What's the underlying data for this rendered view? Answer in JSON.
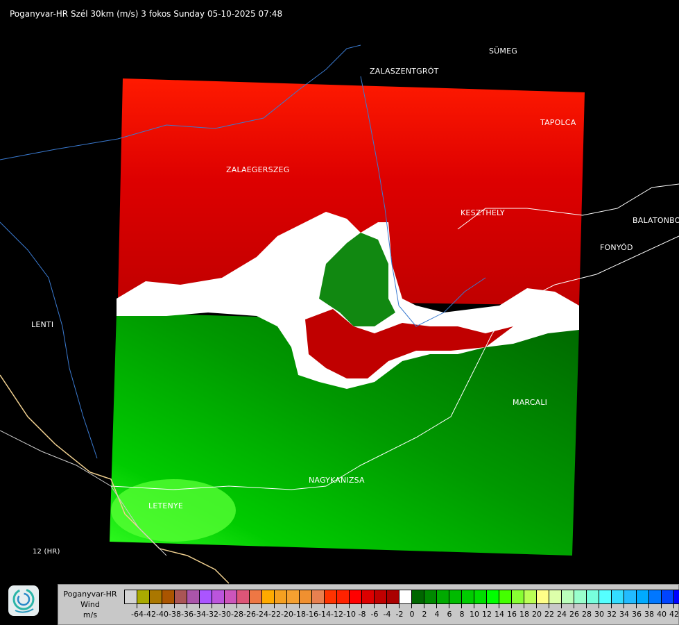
{
  "header": {
    "title": "Poganyvar-HR Szél 30km (m/s) 3 fokos Sunday 05-10-2025 07:48"
  },
  "cities": [
    {
      "name": "SÜMEG"
    },
    {
      "name": "ZALASZENTGRÓT"
    },
    {
      "name": "TAPOLCA"
    },
    {
      "name": "ZALAEGERSZEG"
    },
    {
      "name": "KESZTHELY"
    },
    {
      "name": "BALATONBO"
    },
    {
      "name": "FONYÓD"
    },
    {
      "name": "LENTI"
    },
    {
      "name": "MARCALI"
    },
    {
      "name": "NAGYKANIZSA"
    },
    {
      "name": "LETENYE"
    },
    {
      "name": "12 (HR)"
    }
  ],
  "legend": {
    "title_line1": "Poganyvar-HR",
    "title_line2": "Wind",
    "unit": "m/s",
    "colors": [
      "#d4d4d4",
      "#aaaa00",
      "#aa7700",
      "#aa5500",
      "#aa5555",
      "#aa55aa",
      "#aa55ff",
      "#bb55dd",
      "#cc55bb",
      "#dd5577",
      "#ee7744",
      "#ffaa00",
      "#f5a020",
      "#f5a030",
      "#f09030",
      "#e88050",
      "#ff3300",
      "#ff2200",
      "#ff0000",
      "#dd0000",
      "#c00000",
      "#aa0000",
      "#ffffff",
      "#006600",
      "#008800",
      "#00aa00",
      "#00bb00",
      "#00cc00",
      "#00dd00",
      "#00ff00",
      "#44ff00",
      "#88ff33",
      "#bbff55",
      "#ffff88",
      "#ddffaa",
      "#bbffbb",
      "#99ffcc",
      "#77ffdd",
      "#55ffff",
      "#33ddff",
      "#22bbff",
      "#00aaff",
      "#0077ff",
      "#0044ff",
      "#0000ff"
    ],
    "labels": [
      "-64",
      "-42",
      "-40",
      "-38",
      "-36",
      "-34",
      "-32",
      "-30",
      "-28",
      "-26",
      "-24",
      "-22",
      "-20",
      "-18",
      "-16",
      "-14",
      "-12",
      "-10",
      "-8",
      "-6",
      "-4",
      "-2",
      "0",
      "2",
      "4",
      "6",
      "8",
      "10",
      "12",
      "14",
      "16",
      "18",
      "20",
      "22",
      "24",
      "26",
      "28",
      "30",
      "32",
      "34",
      "36",
      "38",
      "40",
      "42"
    ]
  }
}
